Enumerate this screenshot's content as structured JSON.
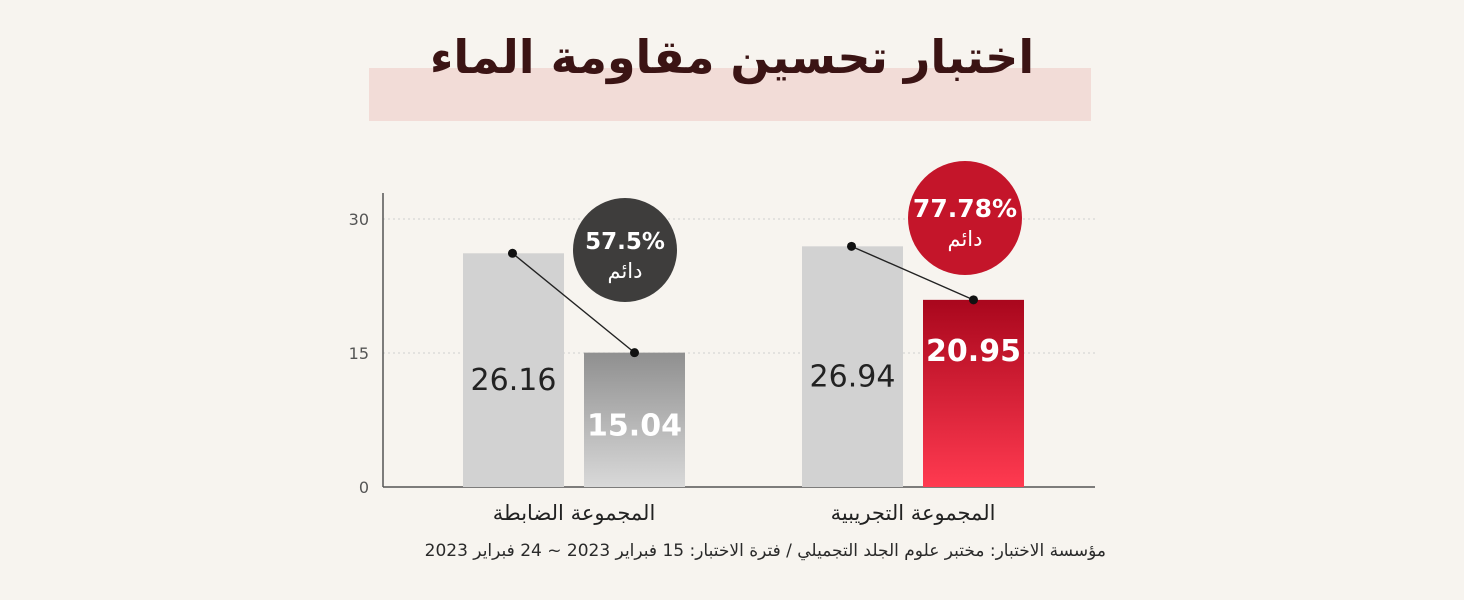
{
  "title": "اختبار تحسين مقاومة الماء",
  "footnote": "مؤسسة الاختبار: مختبر علوم الجلد التجميلي / فترة الاختبار: 15 فبراير 2023 ~ 24 فبراير 2023",
  "chart_data": {
    "type": "bar",
    "categories": [
      "المجموعة الضابطة",
      "المجموعة التجريبية"
    ],
    "series": [
      {
        "values": [
          26.16,
          26.94
        ],
        "color": "#d2d2d2",
        "label_color": "#222222"
      },
      {
        "values": [
          15.04,
          20.95
        ],
        "colors": [
          "#9a9a9a",
          "#c4152a"
        ],
        "label_color": "#ffffff"
      }
    ],
    "badges": [
      {
        "value": "57.5%",
        "label": "دائم",
        "color": "#3e3d3c"
      },
      {
        "value": "77.78%",
        "label": "دائم",
        "color": "#c4152a"
      }
    ],
    "y_ticks": [
      0,
      15,
      30
    ],
    "ylim": [
      0,
      33
    ],
    "grid": true
  }
}
